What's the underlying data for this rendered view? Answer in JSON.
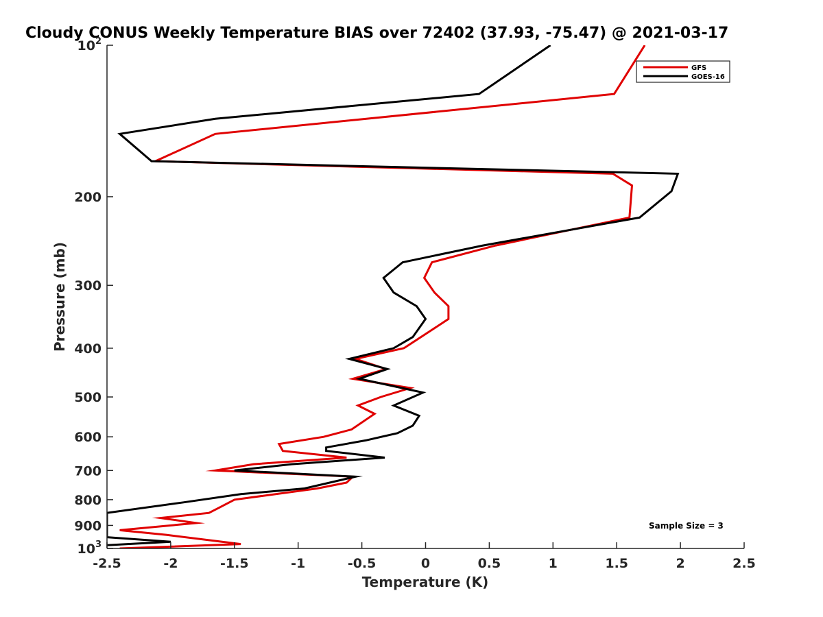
{
  "chart_data": {
    "type": "line",
    "orientation": "vertical-profile",
    "title": "Cloudy CONUS Weekly Temperature BIAS over 72402 (37.93, -75.47) @ 2021-03-17",
    "xlabel": "Temperature (K)",
    "ylabel": "Pressure (mb)",
    "xlim": [
      -2.5,
      2.5
    ],
    "ylim": [
      100,
      1000
    ],
    "y_scale": "log",
    "y_reversed": true,
    "grid": false,
    "legend_position": "top-right",
    "x_ticks": [
      "-2.5",
      "-2",
      "-1.5",
      "-1",
      "-0.5",
      "0",
      "0.5",
      "1",
      "1.5",
      "2",
      "2.5"
    ],
    "y_ticks": [
      {
        "value": 100,
        "base": "10",
        "exp": "2"
      },
      {
        "value": 200,
        "label": "200"
      },
      {
        "value": 300,
        "label": "300"
      },
      {
        "value": 400,
        "label": "400"
      },
      {
        "value": 500,
        "label": "500"
      },
      {
        "value": 600,
        "label": "600"
      },
      {
        "value": 700,
        "label": "700"
      },
      {
        "value": 800,
        "label": "800"
      },
      {
        "value": 900,
        "label": "900"
      },
      {
        "value": 1000,
        "base": "10",
        "exp": "3"
      }
    ],
    "annotation": "Sample Size = 3",
    "series": [
      {
        "name": "GFS",
        "color": "#e00000",
        "points": [
          {
            "x": 1.72,
            "p": 100
          },
          {
            "x": 1.48,
            "p": 125
          },
          {
            "x": -1.65,
            "p": 150
          },
          {
            "x": -2.12,
            "p": 170
          },
          {
            "x": 1.47,
            "p": 180
          },
          {
            "x": 1.62,
            "p": 190
          },
          {
            "x": 1.6,
            "p": 220
          },
          {
            "x": 0.55,
            "p": 250
          },
          {
            "x": 0.05,
            "p": 270
          },
          {
            "x": -0.01,
            "p": 290
          },
          {
            "x": 0.07,
            "p": 310
          },
          {
            "x": 0.18,
            "p": 330
          },
          {
            "x": 0.18,
            "p": 350
          },
          {
            "x": 0.0,
            "p": 375
          },
          {
            "x": -0.17,
            "p": 400
          },
          {
            "x": -0.55,
            "p": 420
          },
          {
            "x": -0.31,
            "p": 440
          },
          {
            "x": -0.57,
            "p": 460
          },
          {
            "x": -0.12,
            "p": 480
          },
          {
            "x": -0.35,
            "p": 500
          },
          {
            "x": -0.53,
            "p": 520
          },
          {
            "x": -0.4,
            "p": 540
          },
          {
            "x": -0.58,
            "p": 580
          },
          {
            "x": -0.8,
            "p": 600
          },
          {
            "x": -1.15,
            "p": 620
          },
          {
            "x": -1.12,
            "p": 640
          },
          {
            "x": -0.62,
            "p": 660
          },
          {
            "x": -1.35,
            "p": 680
          },
          {
            "x": -1.65,
            "p": 700
          },
          {
            "x": -0.57,
            "p": 720
          },
          {
            "x": -0.62,
            "p": 740
          },
          {
            "x": -0.85,
            "p": 760
          },
          {
            "x": -1.5,
            "p": 800
          },
          {
            "x": -1.62,
            "p": 830
          },
          {
            "x": -1.7,
            "p": 850
          },
          {
            "x": -2.08,
            "p": 870
          },
          {
            "x": -1.8,
            "p": 890
          },
          {
            "x": -2.4,
            "p": 920
          },
          {
            "x": -2.03,
            "p": 940
          },
          {
            "x": -1.45,
            "p": 980
          },
          {
            "x": -2.4,
            "p": 1000
          }
        ]
      },
      {
        "name": "GOES-16",
        "color": "#000000",
        "points": [
          {
            "x": 0.98,
            "p": 100
          },
          {
            "x": 0.42,
            "p": 125
          },
          {
            "x": -1.65,
            "p": 140
          },
          {
            "x": -2.4,
            "p": 150
          },
          {
            "x": -2.15,
            "p": 170
          },
          {
            "x": 1.98,
            "p": 180
          },
          {
            "x": 1.93,
            "p": 195
          },
          {
            "x": 1.68,
            "p": 220
          },
          {
            "x": 0.45,
            "p": 250
          },
          {
            "x": -0.18,
            "p": 270
          },
          {
            "x": -0.33,
            "p": 290
          },
          {
            "x": -0.25,
            "p": 310
          },
          {
            "x": -0.07,
            "p": 330
          },
          {
            "x": 0.0,
            "p": 350
          },
          {
            "x": -0.1,
            "p": 380
          },
          {
            "x": -0.25,
            "p": 400
          },
          {
            "x": -0.6,
            "p": 420
          },
          {
            "x": -0.3,
            "p": 440
          },
          {
            "x": -0.52,
            "p": 460
          },
          {
            "x": -0.02,
            "p": 490
          },
          {
            "x": -0.25,
            "p": 520
          },
          {
            "x": -0.05,
            "p": 545
          },
          {
            "x": -0.1,
            "p": 570
          },
          {
            "x": -0.22,
            "p": 590
          },
          {
            "x": -0.47,
            "p": 610
          },
          {
            "x": -0.78,
            "p": 630
          },
          {
            "x": -0.78,
            "p": 640
          },
          {
            "x": -0.32,
            "p": 660
          },
          {
            "x": -1.05,
            "p": 680
          },
          {
            "x": -1.5,
            "p": 700
          },
          {
            "x": -0.55,
            "p": 720
          },
          {
            "x": -0.95,
            "p": 760
          },
          {
            "x": -1.45,
            "p": 780
          },
          {
            "x": -1.9,
            "p": 810
          },
          {
            "x": -2.5,
            "p": 850
          },
          {
            "x": -2.5,
            "p": 950
          },
          {
            "x": -2.0,
            "p": 970
          },
          {
            "x": -2.5,
            "p": 985
          }
        ]
      }
    ]
  }
}
